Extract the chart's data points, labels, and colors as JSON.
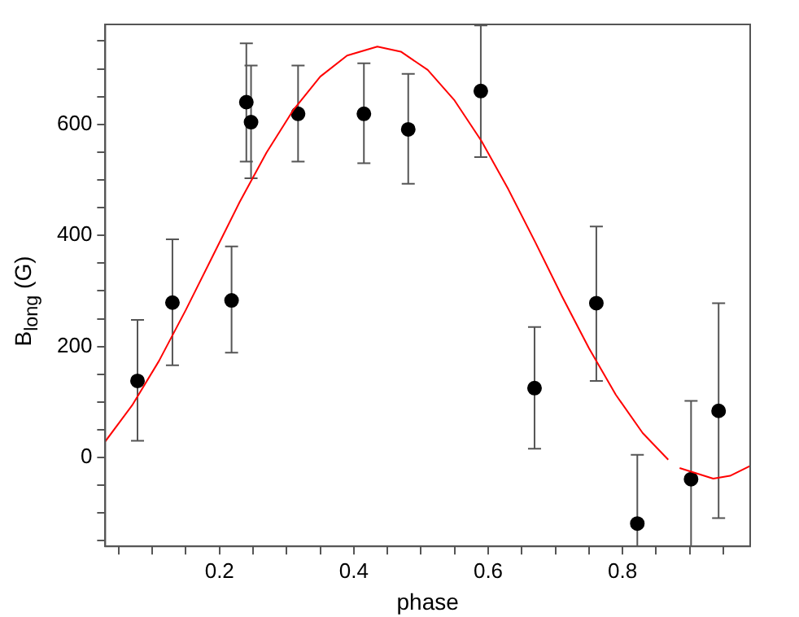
{
  "chart_data": {
    "type": "scatter",
    "xlabel": "phase",
    "ylabel": "B$_{long}$ (G)",
    "xlim": [
      0.03,
      0.99
    ],
    "ylim": [
      -160,
      780
    ],
    "xticks": [
      {
        "value": 0.05,
        "label": null
      },
      {
        "value": 0.1,
        "label": null
      },
      {
        "value": 0.15,
        "label": null
      },
      0.2,
      {
        "value": 0.25,
        "label": null
      },
      {
        "value": 0.3,
        "label": null
      },
      {
        "value": 0.35,
        "label": null
      },
      0.4,
      {
        "value": 0.45,
        "label": null
      },
      {
        "value": 0.5,
        "label": null
      },
      {
        "value": 0.55,
        "label": null
      },
      0.6,
      {
        "value": 0.65,
        "label": null
      },
      {
        "value": 0.7,
        "label": null
      },
      {
        "value": 0.75,
        "label": null
      },
      0.8,
      {
        "value": 0.85,
        "label": null
      },
      {
        "value": 0.9,
        "label": null
      },
      {
        "value": 0.95,
        "label": null
      }
    ],
    "yticks": [
      {
        "value": -150,
        "label": null
      },
      {
        "value": -100,
        "label": null
      },
      {
        "value": -50,
        "label": null
      },
      0,
      {
        "value": 50,
        "label": null
      },
      {
        "value": 100,
        "label": null
      },
      {
        "value": 150,
        "label": null
      },
      200,
      {
        "value": 250,
        "label": null
      },
      {
        "value": 300,
        "label": null
      },
      {
        "value": 350,
        "label": null
      },
      400,
      {
        "value": 450,
        "label": null
      },
      {
        "value": 500,
        "label": null
      },
      {
        "value": 550,
        "label": null
      },
      600,
      {
        "value": 650,
        "label": null
      },
      {
        "value": 700,
        "label": null
      },
      {
        "value": 750,
        "label": null
      }
    ],
    "series": [
      {
        "type": "line",
        "color": "#ff0000",
        "marker": "none",
        "x": [
          0.03,
          0.07,
          0.11,
          0.15,
          0.19,
          0.23,
          0.27,
          0.31,
          0.35,
          0.39,
          0.435,
          0.47,
          0.51,
          0.55,
          0.59,
          0.63,
          0.67,
          0.71,
          0.75,
          0.79,
          0.83,
          0.868,
          0.876,
          0.885,
          0.935,
          0.96,
          0.99
        ],
        "values": [
          29,
          94,
          174,
          266,
          363,
          460,
          549,
          626,
          686,
          724,
          740,
          731,
          698,
          643,
          570,
          483,
          388,
          290,
          197,
          113,
          44,
          -4,
          null,
          -19,
          -38,
          -33,
          -15
        ]
      },
      {
        "type": "scatter",
        "color": "#000000",
        "marker": "circle",
        "x": [
          0.078,
          0.13,
          0.218,
          0.24,
          0.247,
          0.317,
          0.415,
          0.481,
          0.589,
          0.669,
          0.761,
          0.822,
          0.902,
          0.943
        ],
        "values": [
          138,
          279,
          283,
          640,
          604,
          619,
          619,
          591,
          660,
          125,
          278,
          -119,
          -39,
          84
        ],
        "errors": [
          [
            30,
            248
          ],
          [
            166,
            393
          ],
          [
            189,
            380
          ],
          [
            533,
            746
          ],
          [
            503,
            706
          ],
          [
            533,
            706
          ],
          [
            530,
            710
          ],
          [
            493,
            691
          ],
          [
            541,
            778
          ],
          [
            16,
            235
          ],
          [
            138,
            416
          ],
          [
            -160,
            5
          ],
          [
            -160,
            102
          ],
          [
            -109,
            278
          ]
        ]
      }
    ]
  }
}
